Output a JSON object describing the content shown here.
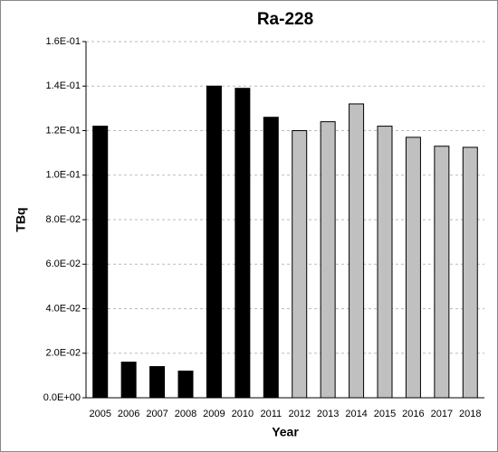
{
  "chart_data": {
    "type": "bar",
    "title": "Ra-228",
    "x_label": "Year",
    "y_label": "TBq",
    "categories": [
      "2005",
      "2006",
      "2007",
      "2008",
      "2009",
      "2010",
      "2011",
      "2012",
      "2013",
      "2014",
      "2015",
      "2016",
      "2017",
      "2018"
    ],
    "values": [
      0.122,
      0.016,
      0.014,
      0.012,
      0.14,
      0.139,
      0.126,
      0.12,
      0.124,
      0.132,
      0.122,
      0.117,
      0.113,
      0.1125
    ],
    "colors": [
      "#000000",
      "#000000",
      "#000000",
      "#000000",
      "#000000",
      "#000000",
      "#000000",
      "#c0c0c0",
      "#c0c0c0",
      "#c0c0c0",
      "#c0c0c0",
      "#c0c0c0",
      "#c0c0c0",
      "#c0c0c0"
    ],
    "ylim": [
      0,
      0.16
    ],
    "yticks": [
      {
        "value": 0,
        "label": "0.0E+00"
      },
      {
        "value": 0.02,
        "label": "2.0E-02"
      },
      {
        "value": 0.04,
        "label": "4.0E-02"
      },
      {
        "value": 0.06,
        "label": "6.0E-02"
      },
      {
        "value": 0.08,
        "label": "8.0E-02"
      },
      {
        "value": 0.1,
        "label": "1.0E-01"
      },
      {
        "value": 0.12,
        "label": "1.2E-01"
      },
      {
        "value": 0.14,
        "label": "1.4E-01"
      },
      {
        "value": 0.16,
        "label": "1.6E-01"
      }
    ],
    "grid": true
  }
}
